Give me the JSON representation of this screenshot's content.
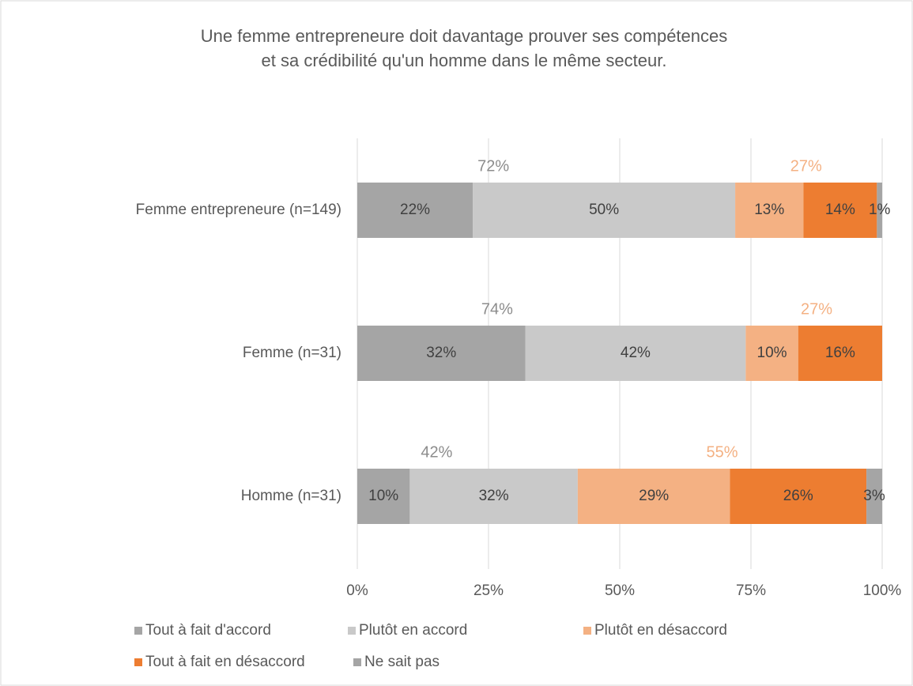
{
  "chart_data": {
    "type": "stacked_barh",
    "title": [
      "Une femme entrepreneure doit davantage prouver ses compétences",
      "et sa crédibilité qu'un homme dans le même secteur."
    ],
    "categories": [
      "Femme entrepreneure (n=149)",
      "Femme (n=31)",
      "Homme (n=31)"
    ],
    "series": [
      {
        "name": "Tout à fait d'accord",
        "color": "#a5a5a5",
        "values": [
          22,
          32,
          10
        ],
        "value_labels": [
          "22%",
          "32%",
          "10%"
        ]
      },
      {
        "name": "Plutôt en accord",
        "color": "#c9c9c9",
        "values": [
          50,
          42,
          32
        ],
        "value_labels": [
          "50%",
          "42%",
          "32%"
        ]
      },
      {
        "name": "Plutôt en désaccord",
        "color": "#f4b183",
        "values": [
          13,
          10,
          29
        ],
        "value_labels": [
          "13%",
          "10%",
          "29%"
        ]
      },
      {
        "name": "Tout à fait en désaccord",
        "color": "#ed7d31",
        "values": [
          14,
          16,
          26
        ],
        "value_labels": [
          "14%",
          "16%",
          "26%"
        ]
      },
      {
        "name": "Ne sait pas",
        "color": "#a5a5a5",
        "values": [
          1,
          null,
          3
        ],
        "value_labels": [
          "1%",
          null,
          "3%"
        ]
      }
    ],
    "totals": [
      {
        "color": "#8c8c8c",
        "values": [
          72,
          74,
          42
        ],
        "value_labels": [
          "72%",
          "74%",
          "42%"
        ]
      },
      {
        "color": "#f4b183",
        "values": [
          27,
          27,
          55
        ],
        "value_labels": [
          "27%",
          "27%",
          "55%"
        ]
      }
    ],
    "xlim": [
      0,
      100
    ],
    "xticks": [
      {
        "value": 0,
        "label": "0%"
      },
      {
        "value": 25,
        "label": "25%"
      },
      {
        "value": 50,
        "label": "50%"
      },
      {
        "value": 75,
        "label": "75%"
      },
      {
        "value": 100,
        "label": "100%"
      }
    ],
    "grid": true,
    "legend": "bottom"
  }
}
